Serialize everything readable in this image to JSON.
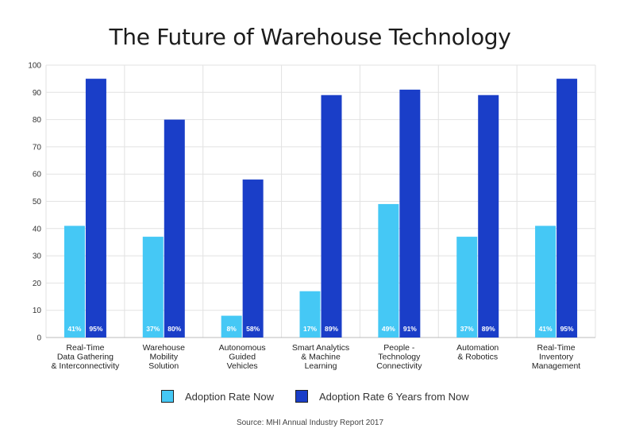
{
  "chart_data": {
    "type": "bar",
    "title": "The Future of Warehouse Technology",
    "categories": [
      [
        "Real-Time",
        "Data Gathering",
        "& Interconnectivity"
      ],
      [
        "Warehouse",
        "Mobility",
        "Solution"
      ],
      [
        "Autonomous",
        "Guided",
        "Vehicles"
      ],
      [
        "Smart Analytics",
        "& Machine",
        "Learning"
      ],
      [
        "People -",
        "Technology",
        "Connectivity"
      ],
      [
        "Automation",
        "& Robotics"
      ],
      [
        "Real-Time",
        "Inventory",
        "Management"
      ]
    ],
    "series": [
      {
        "name": "Adoption Rate Now",
        "color": "#45c8f5",
        "values": [
          41,
          37,
          8,
          17,
          49,
          37,
          41
        ],
        "data_labels": [
          "41%",
          "37%",
          "8%",
          "17%",
          "49%",
          "37%",
          "41%"
        ]
      },
      {
        "name": "Adoption Rate 6 Years from Now",
        "color": "#1a3ec8",
        "values": [
          95,
          80,
          58,
          89,
          91,
          89,
          95
        ],
        "data_labels": [
          "95%",
          "80%",
          "58%",
          "89%",
          "91%",
          "89%",
          "95%"
        ]
      }
    ],
    "ylim": [
      0,
      100
    ],
    "yticks": [
      0,
      10,
      20,
      30,
      40,
      50,
      60,
      70,
      80,
      90,
      100
    ],
    "grid": true,
    "legend_position": "bottom",
    "source": "Source: MHI Annual Industry Report 2017"
  }
}
